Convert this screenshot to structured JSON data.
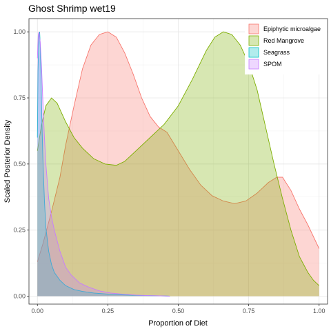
{
  "chart_data": {
    "type": "area",
    "title": "Ghost Shrimp wet19",
    "xlabel": "Proportion of Diet",
    "ylabel": "Scaled Posterior Density",
    "xlim": [
      -0.03,
      1.03
    ],
    "ylim": [
      -0.03,
      1.05
    ],
    "x_ticks": [
      0.0,
      0.25,
      0.5,
      0.75,
      1.0
    ],
    "x_tick_labels": [
      "0.00",
      "0.25",
      "0.50",
      "0.75",
      "1.00"
    ],
    "y_ticks": [
      0.0,
      0.25,
      0.5,
      0.75,
      1.0
    ],
    "y_tick_labels": [
      "0.00",
      "0.25",
      "0.50",
      "0.75",
      "1.00"
    ],
    "grid": true,
    "legend_position": "top-right",
    "series": [
      {
        "name": "Epiphytic microalgae",
        "fill": "#F8766D",
        "line": "#F8766D",
        "x": [
          0.0,
          0.02,
          0.05,
          0.08,
          0.1,
          0.13,
          0.16,
          0.19,
          0.22,
          0.25,
          0.28,
          0.31,
          0.34,
          0.37,
          0.4,
          0.43,
          0.46,
          0.5,
          0.54,
          0.58,
          0.62,
          0.66,
          0.7,
          0.74,
          0.78,
          0.82,
          0.85,
          0.87,
          0.9,
          0.93,
          0.96,
          1.0
        ],
        "y": [
          0.13,
          0.2,
          0.32,
          0.45,
          0.57,
          0.72,
          0.86,
          0.95,
          0.99,
          1.0,
          0.98,
          0.92,
          0.84,
          0.75,
          0.68,
          0.64,
          0.62,
          0.55,
          0.48,
          0.42,
          0.38,
          0.36,
          0.35,
          0.36,
          0.39,
          0.43,
          0.45,
          0.45,
          0.4,
          0.33,
          0.27,
          0.18
        ]
      },
      {
        "name": "Red Mangrove",
        "fill": "#7CAE00",
        "line": "#7CAE00",
        "x": [
          0.0,
          0.015,
          0.03,
          0.05,
          0.07,
          0.1,
          0.13,
          0.16,
          0.2,
          0.24,
          0.28,
          0.31,
          0.35,
          0.4,
          0.45,
          0.5,
          0.55,
          0.6,
          0.63,
          0.66,
          0.69,
          0.72,
          0.75,
          0.78,
          0.81,
          0.84,
          0.87,
          0.9,
          0.93,
          0.96,
          0.98,
          1.0
        ],
        "y": [
          0.55,
          0.65,
          0.72,
          0.75,
          0.73,
          0.66,
          0.6,
          0.56,
          0.52,
          0.5,
          0.495,
          0.51,
          0.55,
          0.6,
          0.65,
          0.72,
          0.82,
          0.93,
          0.98,
          1.0,
          0.99,
          0.95,
          0.88,
          0.78,
          0.64,
          0.5,
          0.37,
          0.25,
          0.15,
          0.09,
          0.06,
          0.04
        ]
      },
      {
        "name": "Seagrass",
        "fill": "#00BFC4",
        "line": "#00BFC4",
        "x": [
          0.0,
          0.002,
          0.005,
          0.008,
          0.01,
          0.013,
          0.016,
          0.02,
          0.025,
          0.03,
          0.04,
          0.05,
          0.06,
          0.08,
          0.1,
          0.13,
          0.16,
          0.2,
          0.25,
          0.3,
          0.35,
          0.4,
          0.45,
          0.47
        ],
        "y": [
          0.6,
          0.85,
          0.98,
          1.0,
          0.95,
          0.82,
          0.66,
          0.5,
          0.36,
          0.26,
          0.17,
          0.12,
          0.09,
          0.06,
          0.04,
          0.025,
          0.018,
          0.012,
          0.008,
          0.005,
          0.003,
          0.002,
          0.001,
          0.0
        ]
      },
      {
        "name": "SPOM",
        "fill": "#C77CFF",
        "line": "#C77CFF",
        "x": [
          0.0,
          0.003,
          0.006,
          0.01,
          0.015,
          0.02,
          0.025,
          0.03,
          0.04,
          0.05,
          0.06,
          0.08,
          0.1,
          0.12,
          0.15,
          0.18,
          0.22,
          0.26,
          0.3,
          0.35,
          0.4,
          0.45,
          0.47
        ],
        "y": [
          0.9,
          0.99,
          1.0,
          0.96,
          0.86,
          0.72,
          0.6,
          0.5,
          0.37,
          0.3,
          0.25,
          0.17,
          0.11,
          0.08,
          0.05,
          0.035,
          0.02,
          0.012,
          0.008,
          0.004,
          0.002,
          0.001,
          0.0
        ]
      }
    ]
  }
}
